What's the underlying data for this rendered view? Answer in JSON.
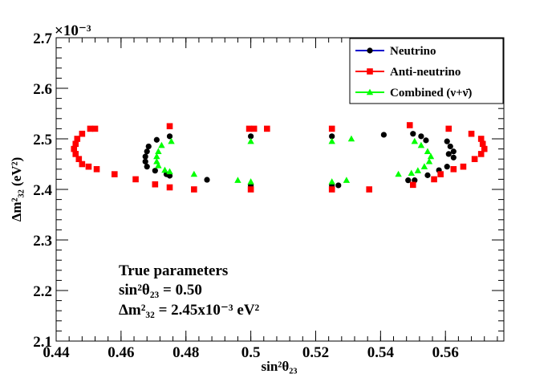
{
  "chart_data": {
    "type": "scatter",
    "title": "",
    "xlabel": "sin²θ₂₃",
    "ylabel": "Δm²₃₂ (eV²)",
    "y_exponent_label": "×10⁻³",
    "xlim": [
      0.44,
      0.578
    ],
    "ylim": [
      2.1,
      2.7
    ],
    "x_ticks": [
      0.44,
      0.46,
      0.48,
      0.5,
      0.52,
      0.54,
      0.56
    ],
    "x_tick_labels": [
      "0.44",
      "0.46",
      "0.48",
      "0.5",
      "0.52",
      "0.54",
      "0.56"
    ],
    "y_ticks": [
      2.1,
      2.2,
      2.3,
      2.4,
      2.5,
      2.6,
      2.7
    ],
    "y_tick_labels": [
      "2.1",
      "2.2",
      "2.3",
      "2.4",
      "2.5",
      "2.6",
      "2.7"
    ],
    "grid": false,
    "legend_position": "top-right",
    "series": [
      {
        "name": "Neutrino",
        "color": "#000000",
        "line_color": "#0000cc",
        "marker": "circle",
        "points": [
          [
            0.475,
            2.505
          ],
          [
            0.471,
            2.498
          ],
          [
            0.4685,
            2.485
          ],
          [
            0.468,
            2.475
          ],
          [
            0.4675,
            2.465
          ],
          [
            0.4675,
            2.455
          ],
          [
            0.468,
            2.445
          ],
          [
            0.4705,
            2.437
          ],
          [
            0.474,
            2.43
          ],
          [
            0.475,
            2.427
          ],
          [
            0.4865,
            2.419
          ],
          [
            0.5,
            2.408
          ],
          [
            0.5,
            2.505
          ],
          [
            0.525,
            2.505
          ],
          [
            0.525,
            2.408
          ],
          [
            0.527,
            2.408
          ],
          [
            0.541,
            2.508
          ],
          [
            0.5485,
            2.418
          ],
          [
            0.5505,
            2.418
          ],
          [
            0.55,
            2.51
          ],
          [
            0.5525,
            2.505
          ],
          [
            0.554,
            2.497
          ],
          [
            0.5545,
            2.428
          ],
          [
            0.558,
            2.438
          ],
          [
            0.5605,
            2.445
          ],
          [
            0.561,
            2.47
          ],
          [
            0.5625,
            2.463
          ],
          [
            0.5625,
            2.475
          ],
          [
            0.5615,
            2.485
          ],
          [
            0.5605,
            2.495
          ]
        ]
      },
      {
        "name": "Anti-neutrino",
        "color": "#ff0000",
        "line_color": "#ff0000",
        "marker": "square",
        "points": [
          [
            0.4505,
            2.52
          ],
          [
            0.452,
            2.52
          ],
          [
            0.448,
            2.51
          ],
          [
            0.4465,
            2.5
          ],
          [
            0.446,
            2.49
          ],
          [
            0.4455,
            2.48
          ],
          [
            0.446,
            2.47
          ],
          [
            0.447,
            2.46
          ],
          [
            0.448,
            2.45
          ],
          [
            0.45,
            2.445
          ],
          [
            0.4525,
            2.44
          ],
          [
            0.458,
            2.43
          ],
          [
            0.4645,
            2.42
          ],
          [
            0.4705,
            2.41
          ],
          [
            0.475,
            2.525
          ],
          [
            0.475,
            2.404
          ],
          [
            0.4825,
            2.4
          ],
          [
            0.4995,
            2.52
          ],
          [
            0.501,
            2.52
          ],
          [
            0.5,
            2.4
          ],
          [
            0.505,
            2.52
          ],
          [
            0.525,
            2.52
          ],
          [
            0.525,
            2.4
          ],
          [
            0.5365,
            2.4
          ],
          [
            0.549,
            2.527
          ],
          [
            0.55,
            2.409
          ],
          [
            0.5565,
            2.42
          ],
          [
            0.5585,
            2.43
          ],
          [
            0.561,
            2.52
          ],
          [
            0.5625,
            2.44
          ],
          [
            0.5655,
            2.445
          ],
          [
            0.568,
            2.51
          ],
          [
            0.569,
            2.46
          ],
          [
            0.571,
            2.47
          ],
          [
            0.572,
            2.48
          ],
          [
            0.5715,
            2.49
          ],
          [
            0.571,
            2.5
          ]
        ]
      },
      {
        "name": "Combined (ν+ν̄)",
        "color": "#00ff00",
        "line_color": "#00ff00",
        "marker": "triangle",
        "points": [
          [
            0.4755,
            2.495
          ],
          [
            0.4725,
            2.487
          ],
          [
            0.4715,
            2.475
          ],
          [
            0.471,
            2.465
          ],
          [
            0.471,
            2.455
          ],
          [
            0.4715,
            2.447
          ],
          [
            0.4735,
            2.438
          ],
          [
            0.475,
            2.435
          ],
          [
            0.4825,
            2.43
          ],
          [
            0.496,
            2.418
          ],
          [
            0.5,
            2.415
          ],
          [
            0.5,
            2.495
          ],
          [
            0.525,
            2.495
          ],
          [
            0.525,
            2.415
          ],
          [
            0.531,
            2.5
          ],
          [
            0.5295,
            2.418
          ],
          [
            0.5455,
            2.43
          ],
          [
            0.5495,
            2.432
          ],
          [
            0.5515,
            2.437
          ],
          [
            0.5535,
            2.445
          ],
          [
            0.555,
            2.455
          ],
          [
            0.5555,
            2.465
          ],
          [
            0.5545,
            2.475
          ],
          [
            0.5525,
            2.487
          ],
          [
            0.5505,
            2.495
          ]
        ]
      }
    ],
    "annotations": {
      "line1": "True parameters",
      "line2": "sin²θ₂₃ = 0.50",
      "line3": "Δm²₃₂ = 2.45x10⁻³ eV²"
    }
  }
}
